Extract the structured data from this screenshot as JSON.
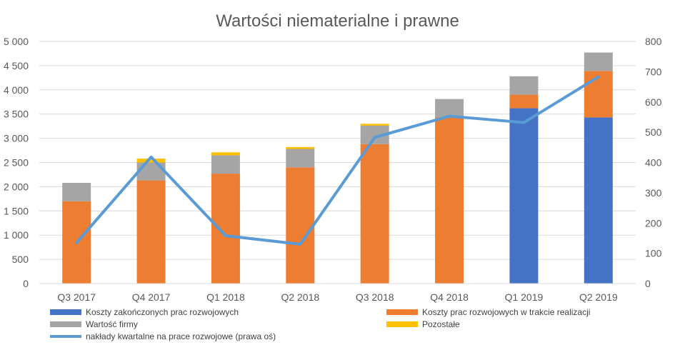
{
  "chart_data": {
    "type": "bar",
    "title": "Wartości niematerialne i prawne",
    "categories": [
      "Q3 2017",
      "Q4 2017",
      "Q1 2018",
      "Q2 2018",
      "Q3 2018",
      "Q4 2018",
      "Q1 2019",
      "Q2 2019"
    ],
    "stacked": true,
    "ylim": [
      0,
      5000
    ],
    "y_ticks": [
      "0",
      "500",
      "1 000",
      "1 500",
      "2 000",
      "2 500",
      "3 000",
      "3 500",
      "4 000",
      "4 500",
      "5 000"
    ],
    "y_tick_values": [
      0,
      500,
      1000,
      1500,
      2000,
      2500,
      3000,
      3500,
      4000,
      4500,
      5000
    ],
    "y2lim": [
      0,
      800
    ],
    "y2_ticks": [
      "0",
      "100",
      "200",
      "300",
      "400",
      "500",
      "600",
      "700",
      "800"
    ],
    "y2_tick_values": [
      0,
      100,
      200,
      300,
      400,
      500,
      600,
      700,
      800
    ],
    "gridlines": true,
    "legend_position": "bottom",
    "series": [
      {
        "name": "Koszty zakończonych prac rozwojowych",
        "color": "#4472C4",
        "values": [
          0,
          0,
          0,
          0,
          0,
          0,
          3620,
          3430
        ]
      },
      {
        "name": "Koszty prac rozwojowych w trakcie realizacji",
        "color": "#ED7D31",
        "values": [
          1700,
          2130,
          2270,
          2400,
          2880,
          3430,
          280,
          960
        ]
      },
      {
        "name": "Wartość firmy",
        "color": "#A5A5A5",
        "values": [
          380,
          370,
          380,
          380,
          380,
          380,
          380,
          380
        ]
      },
      {
        "name": "Pozostałe",
        "color": "#FFC000",
        "values": [
          0,
          80,
          60,
          40,
          40,
          0,
          0,
          0
        ]
      }
    ],
    "line_series": {
      "name": "nakłady kwartalne na prace rozwojowe (prawa oś)",
      "color": "#5B9BD5",
      "axis": "right",
      "values": [
        135,
        418,
        158,
        130,
        483,
        553,
        532,
        683
      ]
    }
  }
}
